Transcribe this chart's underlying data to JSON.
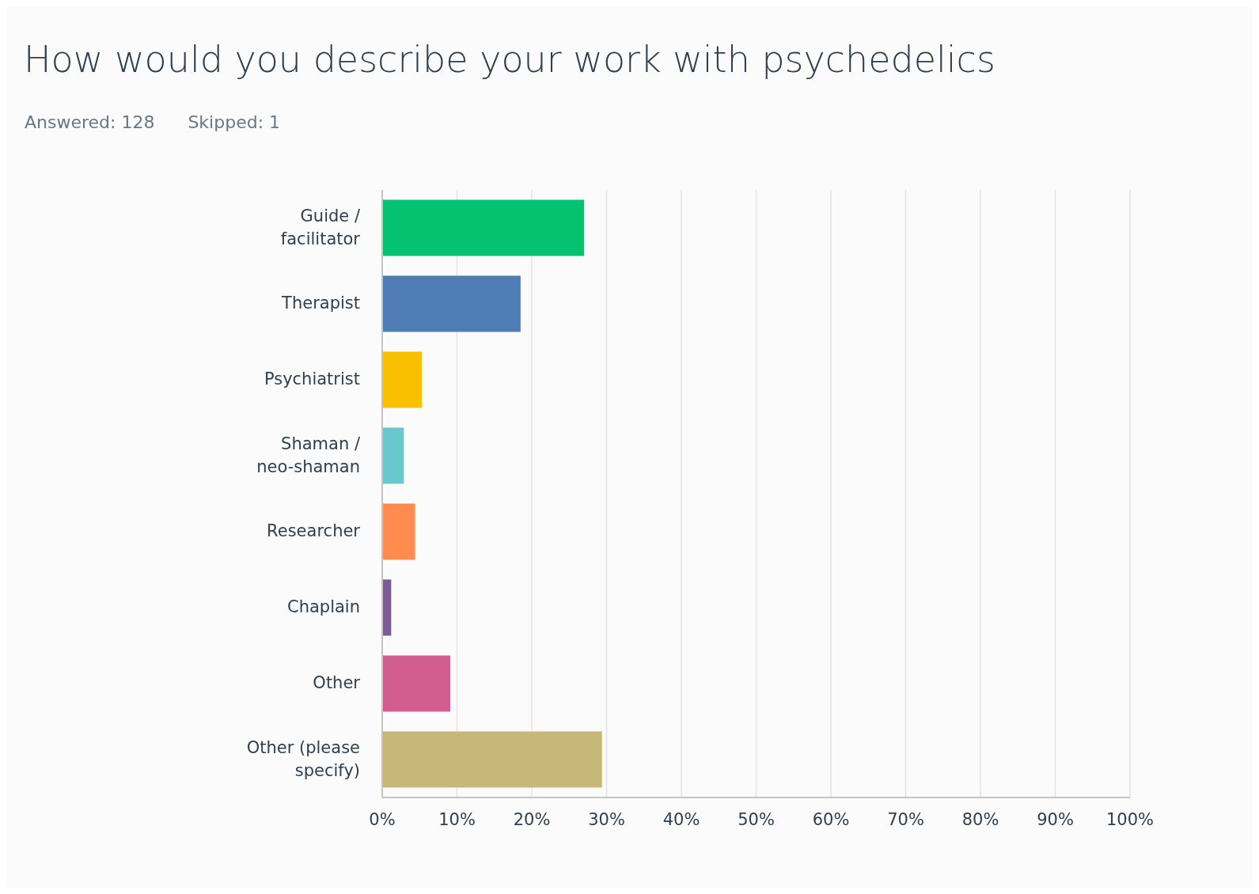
{
  "chart_data": {
    "type": "bar",
    "orientation": "horizontal",
    "title": "How would you describe your work with psychedelics",
    "subtitle": "Answered: 128      Skipped: 1",
    "categories": [
      "Guide / facilitator",
      "Therapist",
      "Psychiatrist",
      "Shaman / neo-shaman",
      "Researcher",
      "Chaplain",
      "Other",
      "Other (please specify)"
    ],
    "values": [
      27.0,
      18.5,
      5.3,
      2.9,
      4.4,
      1.2,
      9.1,
      29.4
    ],
    "colors": [
      "#05c270",
      "#4f7cb5",
      "#f8c000",
      "#6ac8cc",
      "#ff8b4f",
      "#7d5c94",
      "#d25d8f",
      "#c7b879"
    ],
    "xlim": [
      0,
      100
    ],
    "xticks": [
      {
        "value": 0,
        "label": "0%"
      },
      {
        "value": 10,
        "label": "10%"
      },
      {
        "value": 20,
        "label": "20%"
      },
      {
        "value": 30,
        "label": "30%"
      },
      {
        "value": 40,
        "label": "40%"
      },
      {
        "value": 50,
        "label": "50%"
      },
      {
        "value": 60,
        "label": "60%"
      },
      {
        "value": 70,
        "label": "70%"
      },
      {
        "value": 80,
        "label": "80%"
      },
      {
        "value": 90,
        "label": "90%"
      },
      {
        "value": 100,
        "label": "100%"
      }
    ],
    "grid": "x"
  }
}
